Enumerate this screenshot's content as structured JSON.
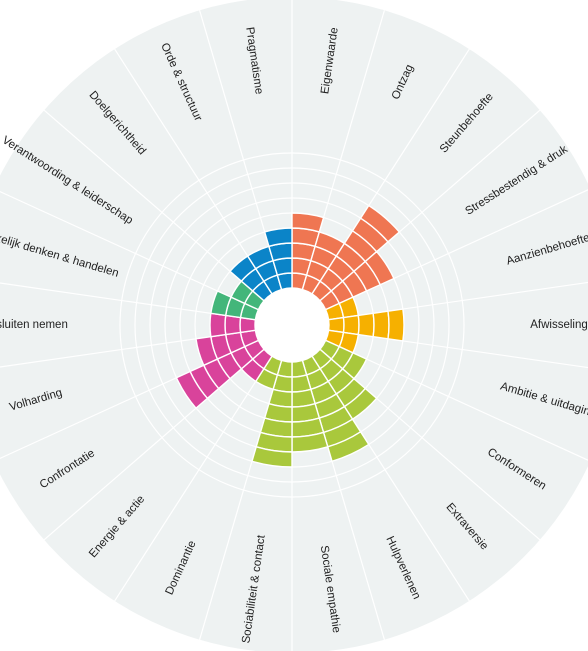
{
  "chart_data": {
    "type": "polar-bar",
    "title": "",
    "levels": 9,
    "colors": {
      "background_disc": "#eef2f2",
      "ring_lines": "#ffffff",
      "hub": "#ffffff",
      "label_text": "#222222"
    },
    "groups": [
      {
        "name": "",
        "color": "#ef7652"
      },
      {
        "name": "",
        "color": "#f6b000"
      },
      {
        "name": "",
        "color": "#a9c83c"
      },
      {
        "name": "",
        "color": "#d9439b"
      },
      {
        "name": "",
        "color": "#43b67a"
      },
      {
        "name": "",
        "color": "#0b84c8"
      }
    ],
    "segments": [
      {
        "label": "Eigenwaarde",
        "value": 5,
        "group": 0
      },
      {
        "label": "Ontzag",
        "value": 4,
        "group": 0
      },
      {
        "label": "Steunbehoefte",
        "value": 7,
        "group": 0
      },
      {
        "label": "Stressbestendig & druk",
        "value": 5,
        "group": 0
      },
      {
        "label": "Aanzienbehoefte",
        "value": 2,
        "group": 1
      },
      {
        "label": "Afwisseling",
        "value": 5,
        "group": 1
      },
      {
        "label": "Ambitie & uitdaging",
        "value": 2,
        "group": 1
      },
      {
        "label": "Conformeren",
        "value": 3,
        "group": 2
      },
      {
        "label": "Extraversie",
        "value": 5,
        "group": 2
      },
      {
        "label": "Hulpverlenen",
        "value": 7,
        "group": 2
      },
      {
        "label": "Sociale empathie",
        "value": 6,
        "group": 2
      },
      {
        "label": "Sociabiliteit & contact",
        "value": 7,
        "group": 2
      },
      {
        "label": "Dominantie",
        "value": 2,
        "group": 2
      },
      {
        "label": "Energie & actie",
        "value": 2,
        "group": 3
      },
      {
        "label": "Confrontatie",
        "value": 6,
        "group": 3
      },
      {
        "label": "Volharding",
        "value": 4,
        "group": 3
      },
      {
        "label": "Besluiten nemen",
        "value": 3,
        "group": 3
      },
      {
        "label": "Onafhankelijk denken & handelen",
        "value": 3,
        "group": 4
      },
      {
        "label": "Verantwoording & leiderschap",
        "value": 2,
        "group": 4
      },
      {
        "label": "Doelgerichtheid",
        "value": 3,
        "group": 5
      },
      {
        "label": "Orde & structuur",
        "value": 3,
        "group": 5
      },
      {
        "label": "Pragmatisme",
        "value": 4,
        "group": 5
      }
    ]
  }
}
